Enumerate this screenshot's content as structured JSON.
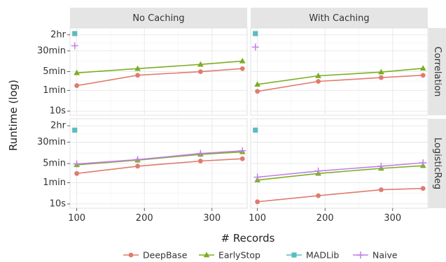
{
  "chart_data": {
    "type": "line",
    "title": "",
    "xlabel": "# Records",
    "ylabel": "Runtime (log)",
    "y_scale": "log",
    "y_unit": "seconds",
    "xlim": [
      90,
      352
    ],
    "ylim": [
      7,
      13000
    ],
    "x_ticks": [
      {
        "value": 100,
        "label": "100"
      },
      {
        "value": 200,
        "label": "200"
      },
      {
        "value": 300,
        "label": "300"
      }
    ],
    "y_ticks": [
      {
        "value": 10,
        "label": "10s"
      },
      {
        "value": 60,
        "label": "1min"
      },
      {
        "value": 300,
        "label": "5min"
      },
      {
        "value": 1800,
        "label": "30min"
      },
      {
        "value": 7200,
        "label": "2hr"
      }
    ],
    "grid": true,
    "legend_position": "bottom",
    "columns": [
      "No Caching",
      "With Caching"
    ],
    "rows": [
      "Correlation",
      "LogisticReg"
    ],
    "series_styles": [
      {
        "name": "DeepBase",
        "color": "#E07B6E",
        "marker": "circle"
      },
      {
        "name": "EarlyStop",
        "color": "#7CAE21",
        "marker": "triangle"
      },
      {
        "name": "MADLib",
        "color": "#5BBCC0",
        "marker": "square"
      },
      {
        "name": "Naive",
        "color": "#C27FE8",
        "marker": "plus"
      }
    ],
    "panels": [
      {
        "column": "No Caching",
        "row": "Correlation",
        "series": [
          {
            "name": "DeepBase",
            "points": [
              {
                "x": 100,
                "y": 90
              },
              {
                "x": 190,
                "y": 220
              },
              {
                "x": 283,
                "y": 300
              },
              {
                "x": 345,
                "y": 390
              }
            ]
          },
          {
            "name": "EarlyStop",
            "points": [
              {
                "x": 100,
                "y": 270
              },
              {
                "x": 190,
                "y": 390
              },
              {
                "x": 283,
                "y": 560
              },
              {
                "x": 345,
                "y": 750
              }
            ]
          },
          {
            "name": "MADLib",
            "points": [
              {
                "x": 97,
                "y": 8000
              }
            ]
          },
          {
            "name": "Naive",
            "points": [
              {
                "x": 97,
                "y": 2800
              }
            ]
          }
        ]
      },
      {
        "column": "With Caching",
        "row": "Correlation",
        "series": [
          {
            "name": "DeepBase",
            "points": [
              {
                "x": 100,
                "y": 55
              },
              {
                "x": 190,
                "y": 130
              },
              {
                "x": 283,
                "y": 180
              },
              {
                "x": 345,
                "y": 220
              }
            ]
          },
          {
            "name": "EarlyStop",
            "points": [
              {
                "x": 100,
                "y": 100
              },
              {
                "x": 190,
                "y": 210
              },
              {
                "x": 283,
                "y": 290
              },
              {
                "x": 345,
                "y": 400
              }
            ]
          },
          {
            "name": "MADLib",
            "points": [
              {
                "x": 97,
                "y": 8000
              }
            ]
          },
          {
            "name": "Naive",
            "points": [
              {
                "x": 97,
                "y": 2500
              }
            ]
          }
        ]
      },
      {
        "column": "No Caching",
        "row": "LogisticReg",
        "series": [
          {
            "name": "DeepBase",
            "points": [
              {
                "x": 100,
                "y": 130
              },
              {
                "x": 190,
                "y": 240
              },
              {
                "x": 283,
                "y": 370
              },
              {
                "x": 345,
                "y": 450
              }
            ]
          },
          {
            "name": "EarlyStop",
            "points": [
              {
                "x": 100,
                "y": 270
              },
              {
                "x": 190,
                "y": 400
              },
              {
                "x": 283,
                "y": 650
              },
              {
                "x": 345,
                "y": 800
              }
            ]
          },
          {
            "name": "MADLib",
            "points": [
              {
                "x": 97,
                "y": 5000
              }
            ]
          },
          {
            "name": "Naive",
            "points": [
              {
                "x": 100,
                "y": 290
              },
              {
                "x": 190,
                "y": 420
              },
              {
                "x": 283,
                "y": 700
              },
              {
                "x": 345,
                "y": 880
              }
            ]
          }
        ]
      },
      {
        "column": "With Caching",
        "row": "LogisticReg",
        "series": [
          {
            "name": "DeepBase",
            "points": [
              {
                "x": 100,
                "y": 12
              },
              {
                "x": 190,
                "y": 20
              },
              {
                "x": 283,
                "y": 33
              },
              {
                "x": 345,
                "y": 37
              }
            ]
          },
          {
            "name": "EarlyStop",
            "points": [
              {
                "x": 100,
                "y": 75
              },
              {
                "x": 190,
                "y": 130
              },
              {
                "x": 283,
                "y": 200
              },
              {
                "x": 345,
                "y": 250
              }
            ]
          },
          {
            "name": "MADLib",
            "points": [
              {
                "x": 97,
                "y": 5000
              }
            ]
          },
          {
            "name": "Naive",
            "points": [
              {
                "x": 100,
                "y": 95
              },
              {
                "x": 190,
                "y": 160
              },
              {
                "x": 283,
                "y": 240
              },
              {
                "x": 345,
                "y": 320
              }
            ]
          }
        ]
      }
    ]
  }
}
